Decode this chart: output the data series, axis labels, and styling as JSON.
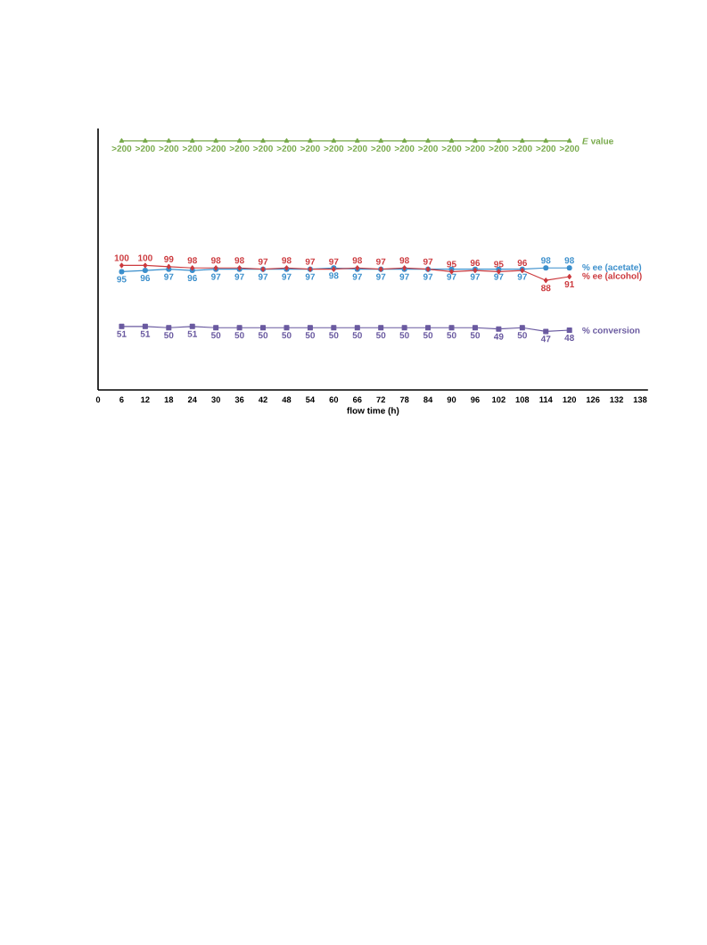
{
  "chart_data": {
    "type": "line",
    "xlabel": "flow time (h)",
    "x": [
      6,
      12,
      18,
      24,
      30,
      36,
      42,
      48,
      54,
      60,
      66,
      72,
      78,
      84,
      90,
      96,
      102,
      108,
      114,
      120
    ],
    "xlim": [
      0,
      140
    ],
    "xticks": [
      0,
      6,
      12,
      18,
      24,
      30,
      36,
      42,
      48,
      54,
      60,
      66,
      72,
      78,
      84,
      90,
      96,
      102,
      108,
      114,
      120,
      126,
      132,
      138
    ],
    "ylim": [
      0,
      210
    ],
    "tick_labels": "x",
    "grid": false,
    "data_labels": true,
    "series": [
      {
        "name": "*E* value",
        "color": "#77a94a",
        "marker": "triangle",
        "values": [
          200,
          200,
          200,
          200,
          200,
          200,
          200,
          200,
          200,
          200,
          200,
          200,
          200,
          200,
          200,
          200,
          200,
          200,
          200,
          200
        ],
        "value_labels": [
          ">200",
          ">200",
          ">200",
          ">200",
          ">200",
          ">200",
          ">200",
          ">200",
          ">200",
          ">200",
          ">200",
          ">200",
          ">200",
          ">200",
          ">200",
          ">200",
          ">200",
          ">200",
          ">200",
          ">200"
        ]
      },
      {
        "name": "% ee (acetate)",
        "color": "#3b8fcc",
        "marker": "circle",
        "values": [
          95,
          96,
          97,
          96,
          97,
          97,
          97,
          97,
          97,
          98,
          97,
          97,
          97,
          97,
          97,
          97,
          97,
          97,
          98,
          98
        ]
      },
      {
        "name": "% ee (alcohol)",
        "color": "#cc3a3e",
        "marker": "diamond",
        "values": [
          100,
          100,
          99,
          98,
          98,
          98,
          97,
          98,
          97,
          97,
          98,
          97,
          98,
          97,
          95,
          96,
          95,
          96,
          88,
          91
        ]
      },
      {
        "name": "% conversion",
        "color": "#6a5aa0",
        "marker": "square",
        "values": [
          51,
          51,
          50,
          51,
          50,
          50,
          50,
          50,
          50,
          50,
          50,
          50,
          50,
          50,
          50,
          50,
          49,
          50,
          47,
          48
        ]
      }
    ]
  }
}
